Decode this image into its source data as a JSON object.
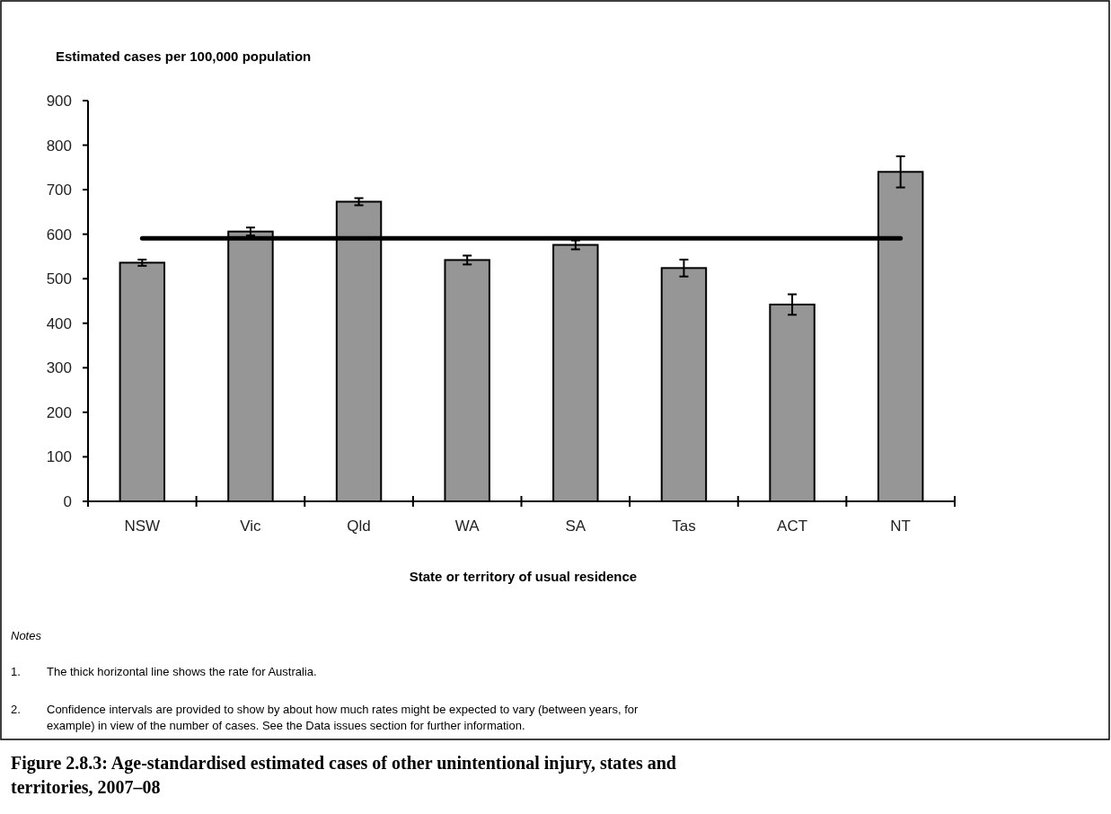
{
  "chart_data": {
    "type": "bar",
    "title": "Figure 2.8.3: Age-standardised estimated cases of other unintentional injury, states and territories, 2007–08",
    "ylabel": "Estimated cases per 100,000 population",
    "xlabel": "State or territory of usual residence",
    "categories": [
      "NSW",
      "Vic",
      "Qld",
      "WA",
      "SA",
      "Tas",
      "ACT",
      "NT"
    ],
    "values": [
      536,
      606,
      673,
      542,
      576,
      524,
      442,
      740
    ],
    "errors": [
      7,
      9,
      8,
      10,
      10,
      19,
      23,
      35
    ],
    "color": "#969696",
    "ylim": [
      0,
      900
    ],
    "yticks": [
      0,
      100,
      200,
      300,
      400,
      500,
      600,
      700,
      800,
      900
    ],
    "grid": false,
    "ref_lines": [
      {
        "axis": "y",
        "value": 591,
        "color": "#000000"
      }
    ],
    "annotations": [
      "Notes",
      "1.\tThe thick horizontal line shows the rate for Australia.",
      "2.\tConfidence intervals are provided to show by about how much rates might be expected to vary (between years, for example) in view of the number of cases. See the Data issues section for further information."
    ]
  }
}
